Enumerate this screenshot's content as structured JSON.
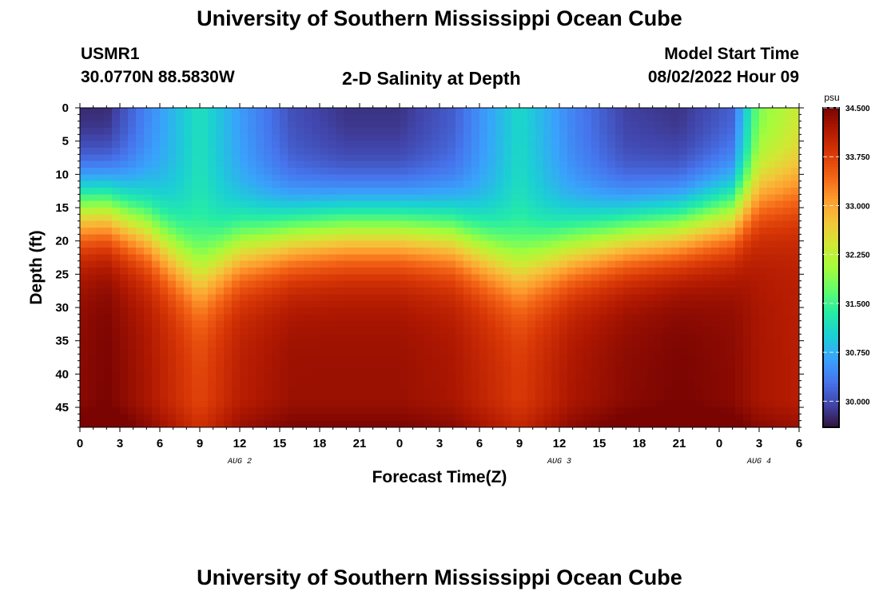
{
  "page": {
    "title": "University of Southern Mississippi Ocean Cube",
    "station": "USMR1",
    "coords": "30.0770N  88.5830W",
    "subtitle": "2-D Salinity at Depth",
    "model_label": "Model Start Time",
    "model_time": "08/02/2022 Hour 09",
    "footer_title": "University of Southern Mississippi Ocean Cube"
  },
  "colors": {
    "ramp": [
      "#30123b",
      "#4145ab",
      "#4675ed",
      "#39a2fc",
      "#1bcfd4",
      "#24eca6",
      "#61fc6c",
      "#a4fc3b",
      "#d1e834",
      "#f3c63a",
      "#fe9b2d",
      "#f36315",
      "#d93806",
      "#b11901",
      "#7a0402"
    ]
  },
  "chart_data": {
    "type": "heatmap",
    "variable": "salinity",
    "xlabel": "Forecast Time(Z)",
    "ylabel": "Depth (ft)",
    "x_tick_labels": [
      "0",
      "3",
      "6",
      "9",
      "12",
      "15",
      "18",
      "21",
      "0",
      "3",
      "6",
      "9",
      "12",
      "15",
      "18",
      "21",
      "0",
      "3",
      "6"
    ],
    "x_range_hours": [
      0,
      54
    ],
    "date_labels": [
      {
        "text": "AUG 2",
        "hour": 12
      },
      {
        "text": "AUG 3",
        "hour": 36
      },
      {
        "text": "AUG 4",
        "hour": 51
      }
    ],
    "y_ticks": [
      0,
      5,
      10,
      15,
      20,
      25,
      30,
      35,
      40,
      45
    ],
    "y_range": [
      0,
      48
    ],
    "colorbar": {
      "unit": "psu",
      "range": [
        29.6,
        34.5
      ],
      "tick_labels": [
        "30.000",
        "30.750",
        "31.500",
        "32.250",
        "33.000",
        "33.750",
        "34.500"
      ],
      "tick_values": [
        30.0,
        30.75,
        31.5,
        32.25,
        33.0,
        33.75,
        34.5
      ]
    },
    "field_nodes": {
      "hours": [
        0,
        2,
        5,
        9,
        12,
        16,
        20,
        24,
        28,
        33,
        37,
        41,
        45,
        49,
        51,
        54
      ],
      "surface_salinity": [
        29.7,
        29.7,
        30.4,
        31.2,
        30.6,
        30.0,
        29.8,
        29.8,
        30.1,
        31.1,
        30.4,
        29.9,
        29.8,
        30.1,
        31.8,
        32.3
      ],
      "halocline_depth_ft": [
        15,
        15,
        18,
        25,
        21,
        19,
        18,
        18,
        19,
        24,
        21,
        19,
        18,
        16,
        13,
        12
      ],
      "bottom_salinity": [
        34.4,
        34.5,
        34.2,
        33.7,
        34.1,
        34.3,
        34.3,
        34.3,
        34.2,
        33.8,
        34.2,
        34.4,
        34.5,
        34.4,
        34.2,
        34.1
      ]
    }
  }
}
